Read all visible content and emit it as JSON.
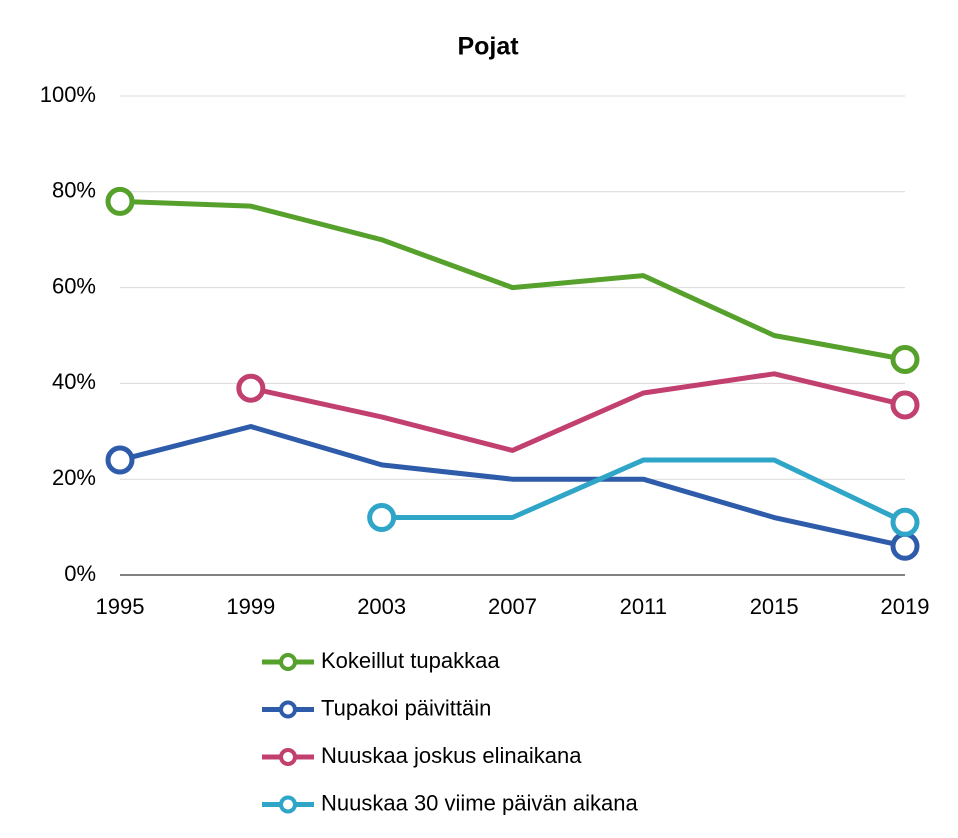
{
  "chart_data": {
    "type": "line",
    "title": "Pojat",
    "categories": [
      "1995",
      "1999",
      "2003",
      "2007",
      "2011",
      "2015",
      "2019"
    ],
    "series": [
      {
        "name": "Kokeillut tupakkaa",
        "color": "#56a02c",
        "values": [
          78,
          77,
          70,
          60,
          62.5,
          50,
          45
        ]
      },
      {
        "name": "Tupakoi päivittäin",
        "color": "#2e5caa",
        "values": [
          24,
          31,
          23,
          20,
          20,
          12,
          6
        ]
      },
      {
        "name": "Nuuskaa joskus elinaikana",
        "color": "#c2406f",
        "values": [
          null,
          39,
          33,
          26,
          38,
          42,
          35.5
        ]
      },
      {
        "name": "Nuuskaa 30 viime päivän aikana",
        "color": "#2fa5c8",
        "values": [
          null,
          null,
          12,
          12,
          24,
          24,
          11
        ]
      }
    ],
    "ylim": [
      0,
      100
    ],
    "yticks": [
      {
        "value": 0,
        "label": "0%"
      },
      {
        "value": 20,
        "label": "20%"
      },
      {
        "value": 40,
        "label": "40%"
      },
      {
        "value": 60,
        "label": "60%"
      },
      {
        "value": 80,
        "label": "80%"
      },
      {
        "value": 100,
        "label": "100%"
      }
    ],
    "grid": true
  }
}
